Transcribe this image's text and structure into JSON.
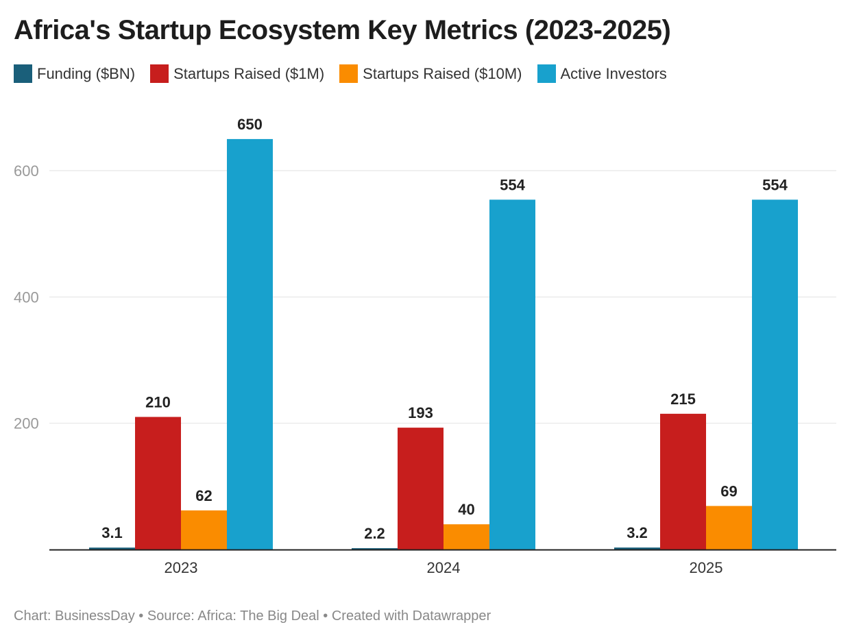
{
  "chart_data": {
    "type": "bar",
    "title": "Africa's Startup Ecosystem Key Metrics (2023-2025)",
    "categories": [
      "2023",
      "2024",
      "2025"
    ],
    "series": [
      {
        "name": "Funding ($BN)",
        "values": [
          3.1,
          2.2,
          3.2
        ],
        "color": "#1a5f7a"
      },
      {
        "name": "Startups Raised ($1M)",
        "values": [
          210,
          193,
          215
        ],
        "color": "#c71e1d"
      },
      {
        "name": "Startups Raised ($10M)",
        "values": [
          62,
          40,
          69
        ],
        "color": "#fa8c00"
      },
      {
        "name": "Active Investors",
        "values": [
          650,
          554,
          554
        ],
        "color": "#18a1cd"
      }
    ],
    "yticks": [
      200,
      400,
      600
    ],
    "ylim": [
      0,
      700
    ],
    "grid": true,
    "legend": "top-left",
    "xlabel": "",
    "ylabel": ""
  },
  "footer": "Chart: BusinessDay  • Source: Africa: The Big Deal • Created with Datawrapper"
}
